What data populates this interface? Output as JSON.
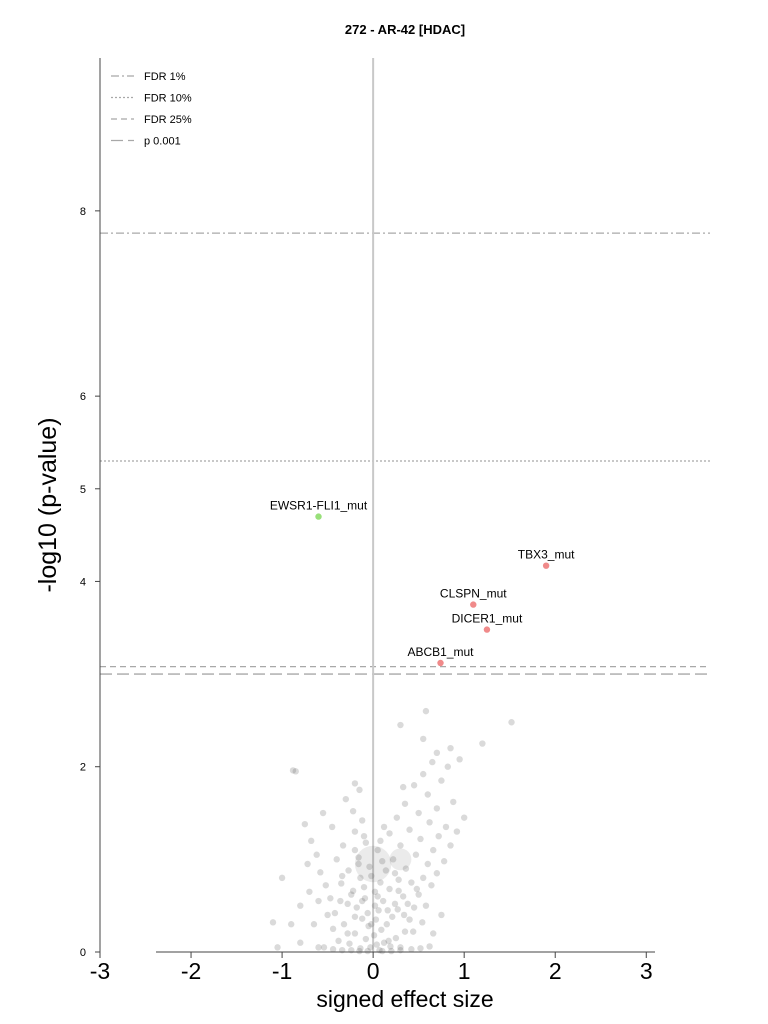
{
  "chart_data": {
    "type": "scatter",
    "title": "272 - AR-42 [HDAC]",
    "xlabel": "signed effect size",
    "ylabel": "-log10 (p-value)",
    "xlim": [
      -3.0,
      3.7
    ],
    "ylim": [
      0,
      9.65
    ],
    "xticks": [
      -3,
      -2,
      -1,
      0,
      1,
      2,
      3
    ],
    "xtick_labels": [
      "-3",
      "-2",
      "-1",
      "0",
      "1",
      "2",
      "3"
    ],
    "yticks": [
      0,
      2,
      4,
      5,
      6,
      8
    ],
    "ytick_labels": [
      "0",
      "2",
      "4",
      "5",
      "6",
      "8"
    ],
    "thresholds": [
      {
        "name": "FDR 1%",
        "y": 7.76,
        "style": "dashdot"
      },
      {
        "name": "FDR 10%",
        "y": 5.3,
        "style": "dotted"
      },
      {
        "name": "FDR 25%",
        "y": 3.08,
        "style": "dashed"
      },
      {
        "name": "p 0.001",
        "y": 3.0,
        "style": "longdash"
      }
    ],
    "legend_position": "top-left",
    "grid": false,
    "colors": {
      "positive": "#f08a8a",
      "negative": "#98e07a",
      "background": "#555555",
      "zero_line": "#c8c8c8",
      "threshold": "#a8a8a8"
    },
    "labeled_points": [
      {
        "label": "EWSR1-FLI1_mut",
        "x": -0.6,
        "y": 4.7,
        "color": "negative"
      },
      {
        "label": "TBX3_mut",
        "x": 1.9,
        "y": 4.17,
        "color": "positive"
      },
      {
        "label": "CLSPN_mut",
        "x": 1.1,
        "y": 3.75,
        "color": "positive"
      },
      {
        "label": "DICER1_mut",
        "x": 1.25,
        "y": 3.48,
        "color": "positive"
      },
      {
        "label": "ABCB1_mut",
        "x": 0.74,
        "y": 3.12,
        "color": "positive"
      }
    ],
    "background_points": [
      [
        0.07,
        0.02
      ],
      [
        0.04,
        0.08
      ],
      [
        -0.03,
        0.05
      ],
      [
        0.12,
        0.1
      ],
      [
        -0.08,
        0.14
      ],
      [
        0.19,
        0.06
      ],
      [
        0.01,
        0.18
      ],
      [
        -0.14,
        0.04
      ],
      [
        0.25,
        0.15
      ],
      [
        0.09,
        0.24
      ],
      [
        -0.2,
        0.2
      ],
      [
        0.15,
        0.3
      ],
      [
        -0.05,
        0.28
      ],
      [
        0.3,
        0.05
      ],
      [
        -0.26,
        0.09
      ],
      [
        0.03,
        0.35
      ],
      [
        0.21,
        0.38
      ],
      [
        -0.12,
        0.36
      ],
      [
        0.35,
        0.22
      ],
      [
        -0.32,
        0.3
      ],
      [
        0.06,
        0.45
      ],
      [
        0.27,
        0.46
      ],
      [
        -0.18,
        0.48
      ],
      [
        0.4,
        0.35
      ],
      [
        -0.38,
        0.12
      ],
      [
        0.11,
        0.55
      ],
      [
        -0.09,
        0.58
      ],
      [
        0.33,
        0.6
      ],
      [
        -0.28,
        0.52
      ],
      [
        0.45,
        0.48
      ],
      [
        -0.42,
        0.42
      ],
      [
        0.02,
        0.65
      ],
      [
        0.18,
        0.68
      ],
      [
        -0.22,
        0.66
      ],
      [
        0.5,
        0.62
      ],
      [
        -0.47,
        0.58
      ],
      [
        0.08,
        0.75
      ],
      [
        0.28,
        0.78
      ],
      [
        -0.14,
        0.8
      ],
      [
        0.42,
        0.75
      ],
      [
        -0.35,
        0.74
      ],
      [
        0.55,
        0.8
      ],
      [
        -0.52,
        0.72
      ],
      [
        0.14,
        0.88
      ],
      [
        -0.04,
        0.92
      ],
      [
        0.36,
        0.9
      ],
      [
        -0.27,
        0.88
      ],
      [
        0.6,
        0.95
      ],
      [
        -0.58,
        0.86
      ],
      [
        0.22,
        1.0
      ],
      [
        -0.16,
        1.02
      ],
      [
        0.47,
        1.05
      ],
      [
        -0.4,
        1.0
      ],
      [
        0.66,
        1.1
      ],
      [
        -0.62,
        1.05
      ],
      [
        0.05,
        1.1
      ],
      [
        0.3,
        1.15
      ],
      [
        -0.08,
        1.18
      ],
      [
        0.52,
        1.22
      ],
      [
        -0.33,
        1.15
      ],
      [
        0.72,
        1.25
      ],
      [
        -0.68,
        1.2
      ],
      [
        0.18,
        1.28
      ],
      [
        -0.2,
        1.3
      ],
      [
        0.4,
        1.32
      ],
      [
        -0.45,
        1.35
      ],
      [
        0.62,
        1.4
      ],
      [
        -0.12,
        1.42
      ],
      [
        0.8,
        1.35
      ],
      [
        -0.75,
        1.38
      ],
      [
        0.26,
        1.45
      ],
      [
        0.5,
        1.5
      ],
      [
        -0.22,
        1.52
      ],
      [
        0.7,
        1.55
      ],
      [
        -0.55,
        1.5
      ],
      [
        0.35,
        1.6
      ],
      [
        0.88,
        1.62
      ],
      [
        -0.3,
        1.65
      ],
      [
        0.6,
        1.7
      ],
      [
        -0.15,
        1.75
      ],
      [
        0.45,
        1.8
      ],
      [
        -0.2,
        1.82
      ],
      [
        0.75,
        1.85
      ],
      [
        0.33,
        1.78
      ],
      [
        0.55,
        1.92
      ],
      [
        0.82,
        2.0
      ],
      [
        -0.85,
        1.95
      ],
      [
        0.65,
        2.05
      ],
      [
        0.95,
        2.08
      ],
      [
        0.7,
        2.15
      ],
      [
        1.2,
        2.25
      ],
      [
        0.55,
        2.3
      ],
      [
        0.85,
        2.2
      ],
      [
        0.3,
        2.45
      ],
      [
        0.58,
        2.6
      ],
      [
        1.52,
        2.48
      ],
      [
        -0.2,
        1.1
      ],
      [
        0.12,
        1.35
      ],
      [
        -0.1,
        0.7
      ],
      [
        0.02,
        0.5
      ],
      [
        0.17,
        0.12
      ],
      [
        -0.02,
        0.3
      ],
      [
        0.24,
        0.52
      ],
      [
        -0.24,
        0.62
      ],
      [
        0.38,
        0.52
      ],
      [
        -0.36,
        0.55
      ],
      [
        0.48,
        0.68
      ],
      [
        -0.5,
        0.4
      ],
      [
        0.58,
        0.5
      ],
      [
        -0.6,
        0.55
      ],
      [
        0.64,
        0.72
      ],
      [
        -0.7,
        0.65
      ],
      [
        0.7,
        0.85
      ],
      [
        -0.8,
        0.5
      ],
      [
        0.78,
        0.98
      ],
      [
        -0.9,
        0.3
      ],
      [
        0.85,
        1.15
      ],
      [
        -1.0,
        0.8
      ],
      [
        0.92,
        1.3
      ],
      [
        -1.05,
        0.05
      ],
      [
        1.0,
        1.45
      ],
      [
        -1.1,
        0.32
      ],
      [
        0.1,
        0.01
      ],
      [
        -0.06,
        0.01
      ],
      [
        0.2,
        0.01
      ],
      [
        -0.15,
        0.01
      ],
      [
        0.3,
        0.02
      ],
      [
        -0.24,
        0.02
      ],
      [
        0.42,
        0.03
      ],
      [
        -0.34,
        0.02
      ],
      [
        0.52,
        0.04
      ],
      [
        -0.44,
        0.03
      ],
      [
        0.62,
        0.06
      ],
      [
        -0.54,
        0.05
      ],
      [
        -0.65,
        0.3
      ],
      [
        -0.72,
        0.95
      ],
      [
        -0.8,
        0.1
      ],
      [
        -0.6,
        0.05
      ],
      [
        0.75,
        0.4
      ],
      [
        0.66,
        0.2
      ],
      [
        0.05,
        0.6
      ],
      [
        -0.02,
        0.82
      ],
      [
        0.1,
        0.98
      ],
      [
        -0.1,
        1.25
      ],
      [
        0.24,
        0.85
      ],
      [
        -0.28,
        0.2
      ],
      [
        0.16,
        0.45
      ],
      [
        -0.12,
        0.55
      ],
      [
        0.34,
        0.4
      ],
      [
        -0.06,
        0.42
      ],
      [
        0.44,
        0.22
      ],
      [
        -0.44,
        0.25
      ],
      [
        0.54,
        0.32
      ],
      [
        -0.2,
        0.38
      ],
      [
        0.28,
        0.66
      ],
      [
        -0.34,
        0.82
      ],
      [
        0.08,
        1.2
      ],
      [
        -0.16,
        0.95
      ],
      [
        -0.88,
        1.96
      ]
    ],
    "density_blobs": [
      [
        0.0,
        0.95,
        0.2
      ],
      [
        0.3,
        1.0,
        0.12
      ]
    ]
  }
}
